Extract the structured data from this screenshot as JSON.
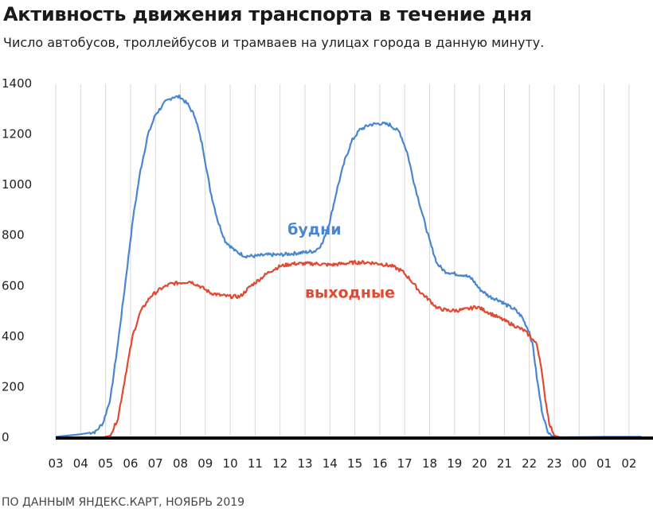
{
  "header": {
    "title": "Активность движения транспорта в течение дня",
    "subtitle": "Число автобусов, троллейбусов и трамваев на улицах города в данную минуту."
  },
  "footer": {
    "source": "ПО ДАННЫМ ЯНДЕКС.КАРТ, НОЯБРЬ 2019"
  },
  "colors": {
    "weekday": "#4a86d0",
    "weekend": "#e04a32",
    "grid": "#d8d8d8",
    "axis": "#000000"
  },
  "chart_data": {
    "type": "line",
    "title": "Активность движения транспорта в течение дня",
    "ylim": [
      0,
      1400
    ],
    "yticks": [
      "0",
      "200",
      "400",
      "600",
      "800",
      "1000",
      "1200",
      "1400"
    ],
    "x_ticks": [
      "03",
      "04",
      "05",
      "06",
      "07",
      "08",
      "09",
      "10",
      "11",
      "12",
      "13",
      "14",
      "15",
      "16",
      "17",
      "18",
      "19",
      "20",
      "21",
      "22",
      "23",
      "00",
      "01",
      "02"
    ],
    "grid": true,
    "series": [
      {
        "name": "будни",
        "points": [
          [
            0,
            5
          ],
          [
            1,
            15
          ],
          [
            1.6,
            25
          ],
          [
            1.9,
            60
          ],
          [
            2.2,
            160
          ],
          [
            2.5,
            380
          ],
          [
            2.8,
            620
          ],
          [
            3.1,
            870
          ],
          [
            3.4,
            1060
          ],
          [
            3.7,
            1200
          ],
          [
            4.0,
            1280
          ],
          [
            4.4,
            1330
          ],
          [
            4.7,
            1350
          ],
          [
            5.0,
            1350
          ],
          [
            5.3,
            1320
          ],
          [
            5.6,
            1270
          ],
          [
            5.9,
            1150
          ],
          [
            6.2,
            980
          ],
          [
            6.5,
            860
          ],
          [
            6.8,
            780
          ],
          [
            7.2,
            740
          ],
          [
            7.6,
            720
          ],
          [
            8.0,
            720
          ],
          [
            8.5,
            725
          ],
          [
            9.0,
            725
          ],
          [
            9.5,
            730
          ],
          [
            10.0,
            735
          ],
          [
            10.4,
            740
          ],
          [
            10.7,
            770
          ],
          [
            11.0,
            860
          ],
          [
            11.3,
            990
          ],
          [
            11.6,
            1100
          ],
          [
            11.9,
            1180
          ],
          [
            12.2,
            1220
          ],
          [
            12.6,
            1240
          ],
          [
            13.0,
            1245
          ],
          [
            13.4,
            1240
          ],
          [
            13.8,
            1210
          ],
          [
            14.1,
            1130
          ],
          [
            14.4,
            1000
          ],
          [
            14.7,
            890
          ],
          [
            15.0,
            780
          ],
          [
            15.3,
            690
          ],
          [
            15.6,
            660
          ],
          [
            16.0,
            650
          ],
          [
            16.4,
            645
          ],
          [
            16.7,
            630
          ],
          [
            17.0,
            590
          ],
          [
            17.4,
            560
          ],
          [
            17.8,
            545
          ],
          [
            18.1,
            525
          ],
          [
            18.4,
            510
          ],
          [
            18.7,
            480
          ],
          [
            19.0,
            420
          ],
          [
            19.15,
            360
          ],
          [
            19.3,
            240
          ],
          [
            19.5,
            110
          ],
          [
            19.7,
            35
          ],
          [
            19.9,
            8
          ],
          [
            20.3,
            3
          ],
          [
            22.0,
            5
          ],
          [
            23.5,
            5
          ]
        ]
      },
      {
        "name": "выходные",
        "points": [
          [
            0,
            0
          ],
          [
            1.8,
            0
          ],
          [
            2.2,
            10
          ],
          [
            2.5,
            80
          ],
          [
            2.8,
            250
          ],
          [
            3.1,
            410
          ],
          [
            3.4,
            500
          ],
          [
            3.8,
            560
          ],
          [
            4.2,
            590
          ],
          [
            4.6,
            610
          ],
          [
            5.0,
            615
          ],
          [
            5.4,
            620
          ],
          [
            5.8,
            600
          ],
          [
            6.2,
            575
          ],
          [
            6.6,
            565
          ],
          [
            7.0,
            560
          ],
          [
            7.4,
            560
          ],
          [
            7.8,
            600
          ],
          [
            8.2,
            630
          ],
          [
            8.6,
            660
          ],
          [
            9.0,
            680
          ],
          [
            9.5,
            690
          ],
          [
            10.0,
            690
          ],
          [
            10.5,
            690
          ],
          [
            11.0,
            685
          ],
          [
            11.5,
            690
          ],
          [
            12.0,
            695
          ],
          [
            12.5,
            695
          ],
          [
            13.0,
            690
          ],
          [
            13.5,
            680
          ],
          [
            13.9,
            660
          ],
          [
            14.2,
            630
          ],
          [
            14.6,
            580
          ],
          [
            15.0,
            545
          ],
          [
            15.3,
            515
          ],
          [
            15.7,
            505
          ],
          [
            16.1,
            505
          ],
          [
            16.5,
            510
          ],
          [
            16.9,
            520
          ],
          [
            17.2,
            505
          ],
          [
            17.6,
            485
          ],
          [
            18.0,
            465
          ],
          [
            18.4,
            445
          ],
          [
            18.8,
            425
          ],
          [
            19.1,
            395
          ],
          [
            19.3,
            370
          ],
          [
            19.45,
            300
          ],
          [
            19.6,
            180
          ],
          [
            19.8,
            60
          ],
          [
            20.0,
            10
          ],
          [
            20.3,
            0
          ],
          [
            23.5,
            0
          ]
        ]
      }
    ],
    "annotations": [
      {
        "text": "будни",
        "series": "будни",
        "x": 9.3,
        "y": 805
      },
      {
        "text": "выходные",
        "series": "выходные",
        "x": 10.0,
        "y": 555
      }
    ]
  }
}
